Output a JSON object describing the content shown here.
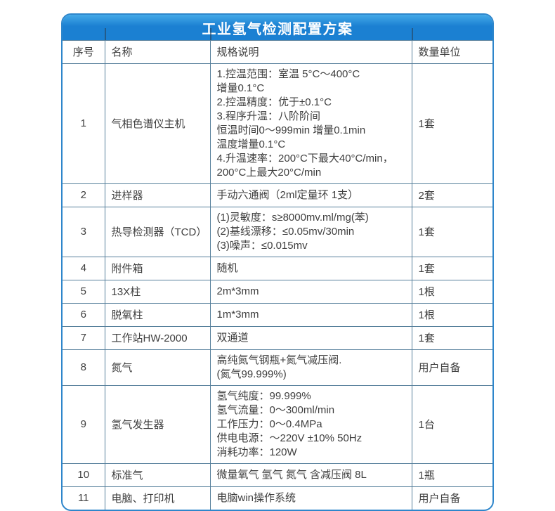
{
  "title": "工业氢气检测配置方案",
  "columns": [
    "序号",
    "名称",
    "规格说明",
    "数量单位"
  ],
  "rows": [
    {
      "num": "1",
      "name": "气相色谱仪主机",
      "spec": [
        "1.控温范围：室温 5°C～400°C",
        "增量0.1°C",
        "2.控温精度：优于±0.1°C",
        "3.程序升温：八阶阶间",
        "恒温时间0～999min 增量0.1min",
        "温度增量0.1°C",
        "4.升温速率：200°C下最大40°C/min，",
        "200°C上最大20°C/min"
      ],
      "qty": "1套"
    },
    {
      "num": "2",
      "name": "进样器",
      "spec": [
        "手动六通阀（2ml定量环 1支）"
      ],
      "qty": "2套"
    },
    {
      "num": "3",
      "name": "热导检测器（TCD）",
      "spec": [
        "(1)灵敏度：s≥8000mv.ml/mg(苯)",
        "(2)基线漂移：≤0.05mv/30min",
        "(3)噪声：≤0.015mv"
      ],
      "qty": "1套"
    },
    {
      "num": "4",
      "name": "附件箱",
      "spec": [
        "随机"
      ],
      "qty": "1套"
    },
    {
      "num": "5",
      "name": "13X柱",
      "spec": [
        "2m*3mm"
      ],
      "qty": "1根"
    },
    {
      "num": "6",
      "name": "脱氧柱",
      "spec": [
        "1m*3mm"
      ],
      "qty": "1根"
    },
    {
      "num": "7",
      "name": "工作站HW-2000",
      "spec": [
        "双通道"
      ],
      "qty": "1套"
    },
    {
      "num": "8",
      "name": "氮气",
      "spec": [
        "高纯氮气钢瓶+氮气减压阀.",
        "(氮气99.999%)"
      ],
      "qty": "用户自备"
    },
    {
      "num": "9",
      "name": "氢气发生器",
      "spec": [
        "氢气纯度：99.999%",
        "氢气流量：0～300ml/min",
        "工作压力：0～0.4MPa",
        "供电电源：～220V ±10% 50Hz",
        "消耗功率：120W"
      ],
      "qty": "1台"
    },
    {
      "num": "10",
      "name": "标准气",
      "spec": [
        "微量氧气 氩气 氮气 含减压阀 8L"
      ],
      "qty": "1瓶"
    },
    {
      "num": "11",
      "name": "电脑、打印机",
      "spec": [
        "电脑win操作系统"
      ],
      "qty": "用户自备"
    }
  ],
  "colors": {
    "header_blue_top": "#44a9e8",
    "header_blue": "#1b80d2",
    "grid": "#567f9b",
    "outer_border": "#2e86cb",
    "text": "#3e3e3e"
  }
}
